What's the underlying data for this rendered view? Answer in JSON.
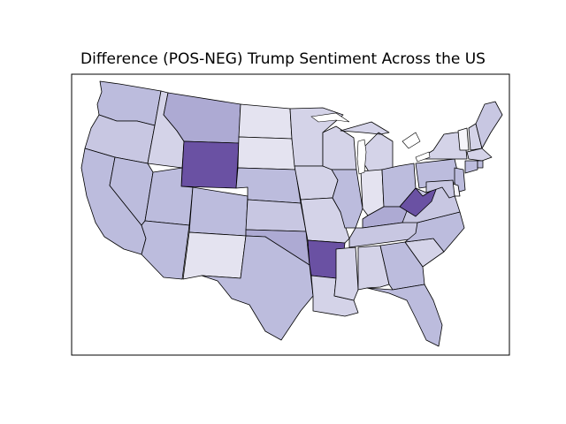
{
  "title": "Difference (POS-NEG) Trump Sentiment Across the US",
  "palette": {
    "white": "#f6f5fa",
    "very_light": "#e4e3f0",
    "light": "#d4d3e8",
    "light_mid": "#c8c7e2",
    "mid": "#bcbcdd",
    "mid_dark": "#adaad3",
    "dark": "#6a51a3"
  },
  "states": [
    {
      "abbr": "WA",
      "shade": "mid"
    },
    {
      "abbr": "OR",
      "shade": "light_mid"
    },
    {
      "abbr": "CA",
      "shade": "mid"
    },
    {
      "abbr": "NV",
      "shade": "mid"
    },
    {
      "abbr": "ID",
      "shade": "light"
    },
    {
      "abbr": "MT",
      "shade": "mid_dark"
    },
    {
      "abbr": "WY",
      "shade": "dark"
    },
    {
      "abbr": "UT",
      "shade": "mid"
    },
    {
      "abbr": "AZ",
      "shade": "mid"
    },
    {
      "abbr": "CO",
      "shade": "mid"
    },
    {
      "abbr": "NM",
      "shade": "very_light"
    },
    {
      "abbr": "ND",
      "shade": "very_light"
    },
    {
      "abbr": "SD",
      "shade": "very_light"
    },
    {
      "abbr": "NE",
      "shade": "mid"
    },
    {
      "abbr": "KS",
      "shade": "light_mid"
    },
    {
      "abbr": "OK",
      "shade": "mid_dark"
    },
    {
      "abbr": "TX",
      "shade": "mid"
    },
    {
      "abbr": "MN",
      "shade": "light"
    },
    {
      "abbr": "IA",
      "shade": "light"
    },
    {
      "abbr": "MO",
      "shade": "light"
    },
    {
      "abbr": "AR",
      "shade": "dark"
    },
    {
      "abbr": "LA",
      "shade": "light"
    },
    {
      "abbr": "WI",
      "shade": "light"
    },
    {
      "abbr": "IL",
      "shade": "mid"
    },
    {
      "abbr": "MI",
      "shade": "light"
    },
    {
      "abbr": "IN",
      "shade": "very_light"
    },
    {
      "abbr": "OH",
      "shade": "mid"
    },
    {
      "abbr": "KY",
      "shade": "mid_dark"
    },
    {
      "abbr": "TN",
      "shade": "light_mid"
    },
    {
      "abbr": "MS",
      "shade": "light"
    },
    {
      "abbr": "AL",
      "shade": "light"
    },
    {
      "abbr": "GA",
      "shade": "mid"
    },
    {
      "abbr": "FL",
      "shade": "mid"
    },
    {
      "abbr": "SC",
      "shade": "light"
    },
    {
      "abbr": "NC",
      "shade": "mid"
    },
    {
      "abbr": "VA",
      "shade": "light_mid"
    },
    {
      "abbr": "WV",
      "shade": "dark"
    },
    {
      "abbr": "PA",
      "shade": "mid"
    },
    {
      "abbr": "NY",
      "shade": "light"
    },
    {
      "abbr": "VT",
      "shade": "white"
    },
    {
      "abbr": "NH",
      "shade": "light"
    },
    {
      "abbr": "ME",
      "shade": "light_mid"
    },
    {
      "abbr": "MA",
      "shade": "light"
    },
    {
      "abbr": "CT",
      "shade": "mid"
    },
    {
      "abbr": "RI",
      "shade": "mid"
    },
    {
      "abbr": "NJ",
      "shade": "mid"
    },
    {
      "abbr": "DE",
      "shade": "white"
    },
    {
      "abbr": "MD",
      "shade": "light_mid"
    }
  ]
}
